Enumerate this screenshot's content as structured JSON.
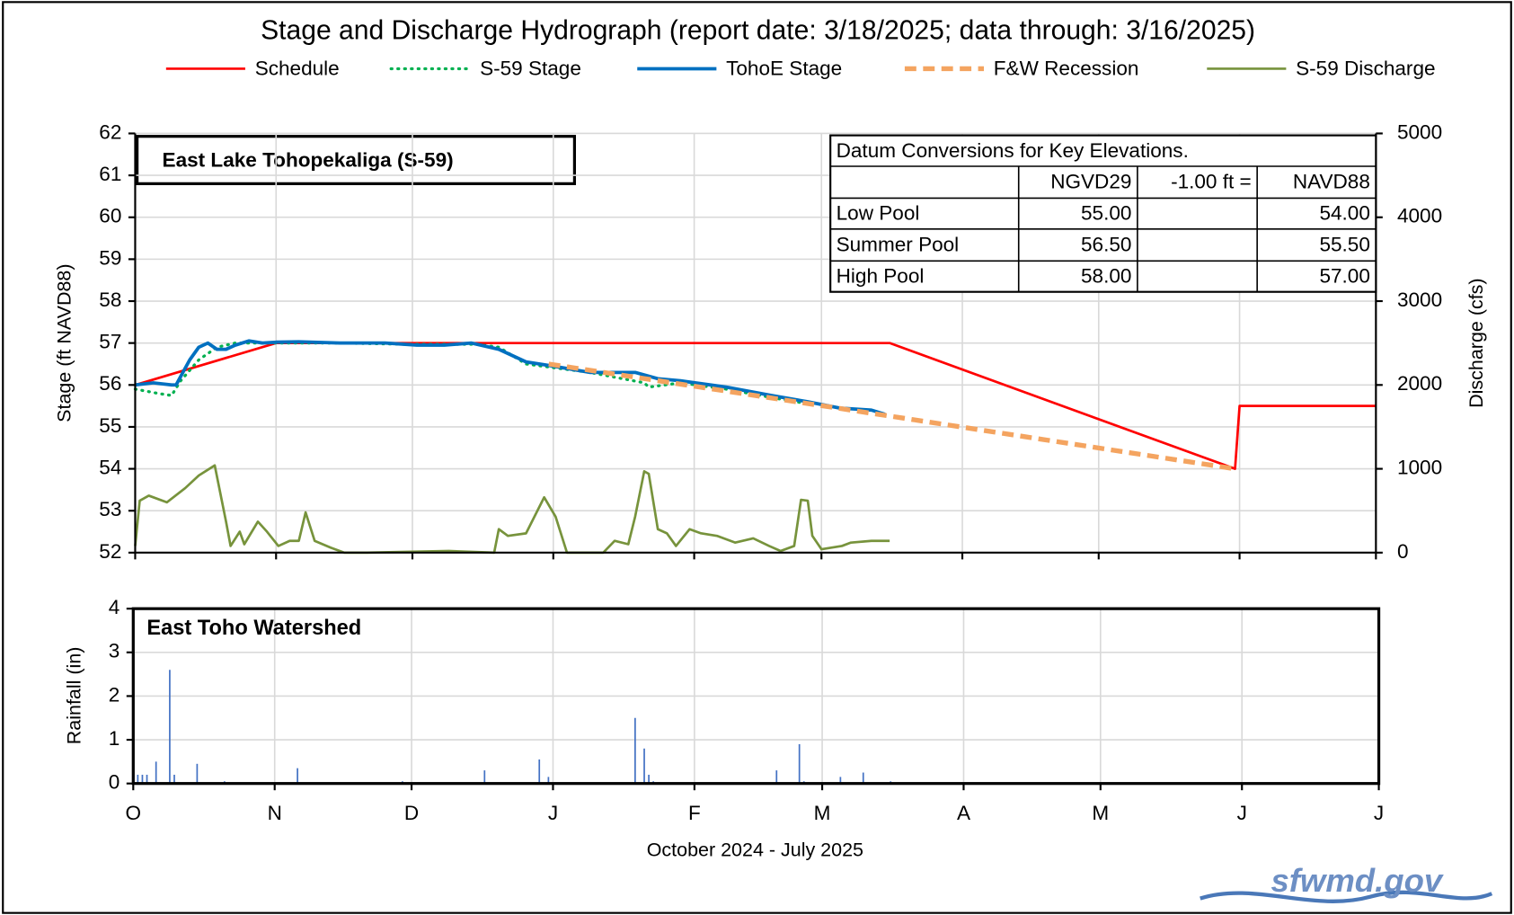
{
  "chart_data": [
    {
      "type": "line",
      "title": "Stage and Discharge Hydrograph  (report date: 3/18/2025; data through:  3/16/2025)",
      "annotation": "East Lake Tohopekaliga  (S-59)",
      "ylabel": "Stage (ft NAVD88)",
      "y2label": "Discharge (cfs)",
      "xlim": [
        0,
        273
      ],
      "xticks": [
        0,
        31,
        61,
        92,
        123,
        151,
        182,
        212,
        243,
        273
      ],
      "ylim": [
        52,
        62
      ],
      "yticks": [
        52,
        53,
        54,
        55,
        56,
        57,
        58,
        59,
        60,
        61,
        62
      ],
      "y2lim": [
        0,
        5000
      ],
      "y2ticks": [
        0,
        1000,
        2000,
        3000,
        4000,
        5000
      ],
      "grid": true,
      "legend": "top",
      "series": [
        {
          "name": "Schedule",
          "color": "#ff0000",
          "line_style": "solid",
          "x": [
            0,
            31,
            166,
            242,
            243,
            273
          ],
          "values": [
            56,
            57,
            57,
            54,
            55.5,
            55.5
          ]
        },
        {
          "name": "S-59 Stage",
          "color": "#00b050",
          "line_style": "dotted",
          "x": [
            0,
            5,
            8,
            10,
            14,
            18,
            22,
            30,
            45,
            60,
            75,
            80,
            86,
            100,
            112,
            113,
            120,
            130,
            140,
            148
          ],
          "values": [
            55.9,
            55.8,
            55.75,
            56.1,
            56.6,
            56.9,
            57.0,
            57.0,
            57.0,
            56.97,
            56.97,
            56.9,
            56.5,
            56.3,
            56.05,
            55.95,
            56.05,
            55.9,
            55.7,
            55.55
          ]
        },
        {
          "name": "TohoE Stage",
          "color": "#0070c0",
          "line_style": "bold",
          "x": [
            0,
            4,
            8,
            9,
            10,
            12,
            14,
            16,
            18,
            20,
            22,
            25,
            28,
            31,
            36,
            45,
            55,
            62,
            68,
            74,
            80,
            86,
            92,
            100,
            110,
            115,
            120,
            130,
            140,
            148,
            155,
            162,
            165
          ],
          "values": [
            56,
            56.05,
            56.0,
            56.0,
            56.2,
            56.6,
            56.9,
            57.0,
            56.85,
            56.85,
            56.95,
            57.05,
            57.0,
            57.02,
            57.03,
            57.0,
            57.0,
            56.95,
            56.95,
            57.0,
            56.85,
            56.55,
            56.45,
            56.3,
            56.3,
            56.15,
            56.1,
            55.95,
            55.75,
            55.6,
            55.45,
            55.4,
            55.3
          ]
        },
        {
          "name": "F&W Recession",
          "color": "#f4a460",
          "line_style": "dashed",
          "x": [
            91,
            242
          ],
          "values": [
            56.5,
            54.0
          ]
        },
        {
          "name": "S-59 Discharge",
          "color": "#77933c",
          "line_style": "solid",
          "axis": "y2",
          "x": [
            0,
            1,
            3,
            7,
            11,
            14,
            17.5,
            20,
            21,
            23,
            24,
            27,
            29,
            31.5,
            34,
            36,
            37.5,
            39.5,
            43,
            46,
            51,
            69,
            79,
            80,
            82,
            86,
            90,
            92.5,
            95,
            103,
            105.5,
            108.5,
            110,
            112,
            113,
            115,
            117,
            119,
            122,
            124.5,
            128,
            132,
            136,
            139.5,
            142,
            145,
            146.5,
            148,
            149,
            151,
            155.5,
            157.5,
            162,
            166
          ],
          "values": [
            80,
            620,
            680,
            600,
            770,
            920,
            1040,
            370,
            80,
            250,
            100,
            370,
            250,
            80,
            140,
            140,
            480,
            140,
            60,
            0,
            0,
            20,
            0,
            280,
            200,
            230,
            660,
            430,
            0,
            0,
            140,
            100,
            430,
            970,
            940,
            280,
            230,
            80,
            280,
            230,
            200,
            120,
            170,
            80,
            20,
            80,
            630,
            620,
            200,
            40,
            80,
            120,
            140,
            140
          ]
        }
      ]
    },
    {
      "type": "bar",
      "annotation": "East Toho Watershed",
      "ylabel": "Rainfall (in)",
      "xlabel": "October 2024 - July 2025",
      "xlim": [
        0,
        273
      ],
      "xticks": [
        {
          "value": 0,
          "label": "O"
        },
        {
          "value": 31,
          "label": "N"
        },
        {
          "value": 61,
          "label": "D"
        },
        {
          "value": 92,
          "label": "J"
        },
        {
          "value": 123,
          "label": "F"
        },
        {
          "value": 151,
          "label": "M"
        },
        {
          "value": 182,
          "label": "A"
        },
        {
          "value": 212,
          "label": "M"
        },
        {
          "value": 243,
          "label": "J"
        },
        {
          "value": 273,
          "label": "J"
        }
      ],
      "ylim": [
        0,
        4
      ],
      "yticks": [
        0,
        1,
        2,
        3,
        4
      ],
      "grid": true,
      "color": "#4472c4",
      "x": [
        0,
        1,
        2,
        3,
        5,
        8,
        9,
        14,
        20,
        36,
        59,
        77,
        89,
        91,
        110,
        112,
        113,
        114,
        141,
        146,
        147,
        155,
        160,
        166
      ],
      "values": [
        0.5,
        0.2,
        0.2,
        0.2,
        0.5,
        2.6,
        0.2,
        0.45,
        0.05,
        0.35,
        0.05,
        0.3,
        0.55,
        0.15,
        1.5,
        0.8,
        0.2,
        0.05,
        0.3,
        0.9,
        0.05,
        0.15,
        0.25,
        0.05
      ]
    }
  ],
  "table": {
    "title": "Datum Conversions for Key Elevations.",
    "columns": [
      "NGVD29",
      "-1.00 ft =",
      "NAVD88"
    ],
    "rows": [
      {
        "label": "Low Pool",
        "values": [
          "55.00",
          "54.00"
        ]
      },
      {
        "label": "Summer Pool",
        "values": [
          "56.50",
          "55.50"
        ]
      },
      {
        "label": "High Pool",
        "values": [
          "58.00",
          "57.00"
        ]
      }
    ]
  },
  "logo": "sfwmd.gov"
}
